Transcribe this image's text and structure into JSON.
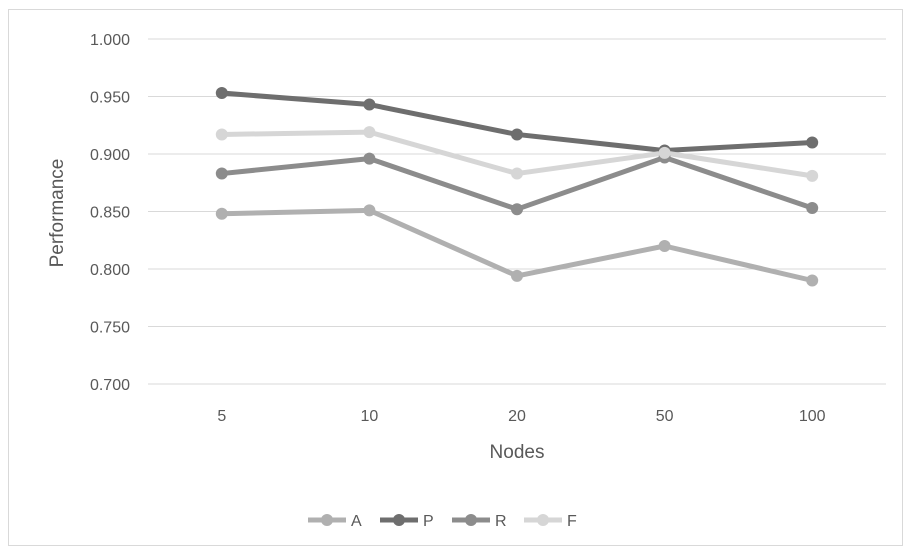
{
  "chart_data": {
    "type": "line",
    "title": "",
    "xlabel": "Nodes",
    "ylabel": "Performance",
    "categories": [
      "5",
      "10",
      "20",
      "50",
      "100"
    ],
    "ylim": [
      0.7,
      1.0
    ],
    "yticks": [
      "0.700",
      "0.750",
      "0.800",
      "0.850",
      "0.900",
      "0.950",
      "1.000"
    ],
    "grid": true,
    "legend_position": "bottom",
    "series": [
      {
        "name": "A",
        "color": "#b0b0b0",
        "values": [
          0.848,
          0.851,
          0.794,
          0.82,
          0.79
        ]
      },
      {
        "name": "P",
        "color": "#6e6e6e",
        "values": [
          0.953,
          0.943,
          0.917,
          0.903,
          0.91
        ]
      },
      {
        "name": "R",
        "color": "#8c8c8c",
        "values": [
          0.883,
          0.896,
          0.852,
          0.897,
          0.853
        ]
      },
      {
        "name": "F",
        "color": "#d6d6d6",
        "values": [
          0.917,
          0.919,
          0.883,
          0.901,
          0.881
        ]
      }
    ]
  }
}
